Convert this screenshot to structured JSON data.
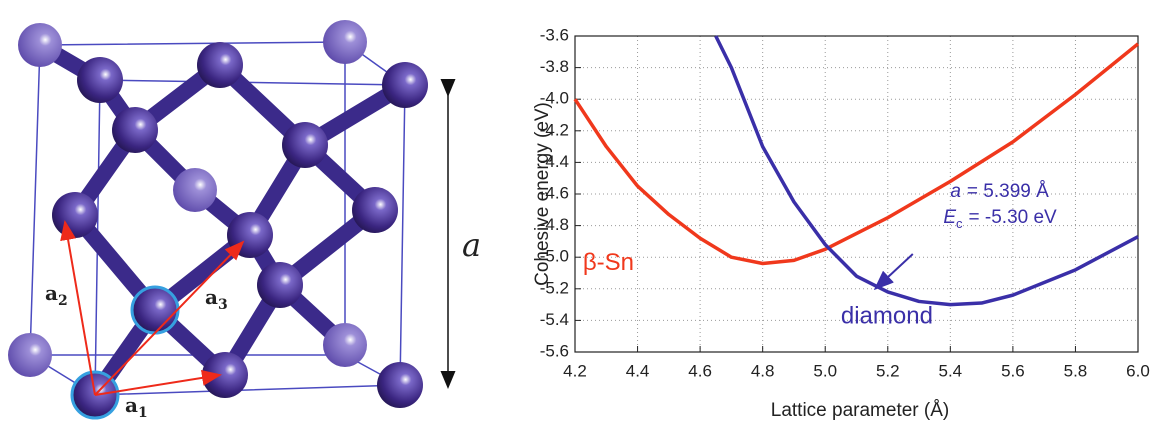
{
  "diagram": {
    "vectors": [
      {
        "text": "a",
        "subscript": "1"
      },
      {
        "text": "a",
        "subscript": "2"
      },
      {
        "text": "a",
        "subscript": "3"
      }
    ],
    "lattice_label": "a"
  },
  "chart_data": {
    "type": "line",
    "x_label": "Lattice parameter (Å)",
    "y_label": "Cohesive energy (eV)",
    "xlim": [
      4.2,
      6.0
    ],
    "ylim": [
      -5.6,
      -3.6
    ],
    "xticks": [
      4.2,
      4.4,
      4.6,
      4.8,
      {
        "value": 5,
        "label": "5.0"
      },
      5.2,
      5.4,
      5.6,
      5.8,
      {
        "value": 6,
        "label": "6.0"
      }
    ],
    "yticks": [
      -3.6,
      -3.8,
      {
        "value": -4,
        "label": "-4.0"
      },
      -4.2,
      -4.4,
      -4.6,
      -4.8,
      {
        "value": -5,
        "label": "-5.0"
      },
      -5.2,
      -5.4,
      -5.6
    ],
    "grid": true,
    "series": [
      {
        "name": "β-Sn",
        "color": "#f0381c",
        "x": [
          4.2,
          4.3,
          4.4,
          4.5,
          4.6,
          4.7,
          4.8,
          4.9,
          5.0,
          5.2,
          5.4,
          5.6,
          5.8,
          6.0
        ],
        "values": [
          -4.0,
          -4.3,
          -4.55,
          -4.73,
          -4.88,
          -5.0,
          -5.04,
          -5.02,
          -4.95,
          -4.75,
          -4.52,
          -4.27,
          -3.97,
          -3.65
        ]
      },
      {
        "name": "diamond",
        "color": "#3a2fa8",
        "x": [
          4.65,
          4.7,
          4.8,
          4.9,
          5.0,
          5.1,
          5.2,
          5.3,
          5.4,
          5.5,
          5.6,
          5.8,
          6.0
        ],
        "values": [
          -3.6,
          -3.8,
          -4.3,
          -4.65,
          -4.92,
          -5.12,
          -5.22,
          -5.28,
          -5.3,
          -5.29,
          -5.24,
          -5.08,
          -4.87
        ]
      }
    ],
    "annotations": [
      {
        "symbol": "a",
        "text": "= 5.399 Å"
      },
      {
        "symbol": "E",
        "subscript": "c",
        "text": "= -5.30 eV"
      }
    ]
  }
}
